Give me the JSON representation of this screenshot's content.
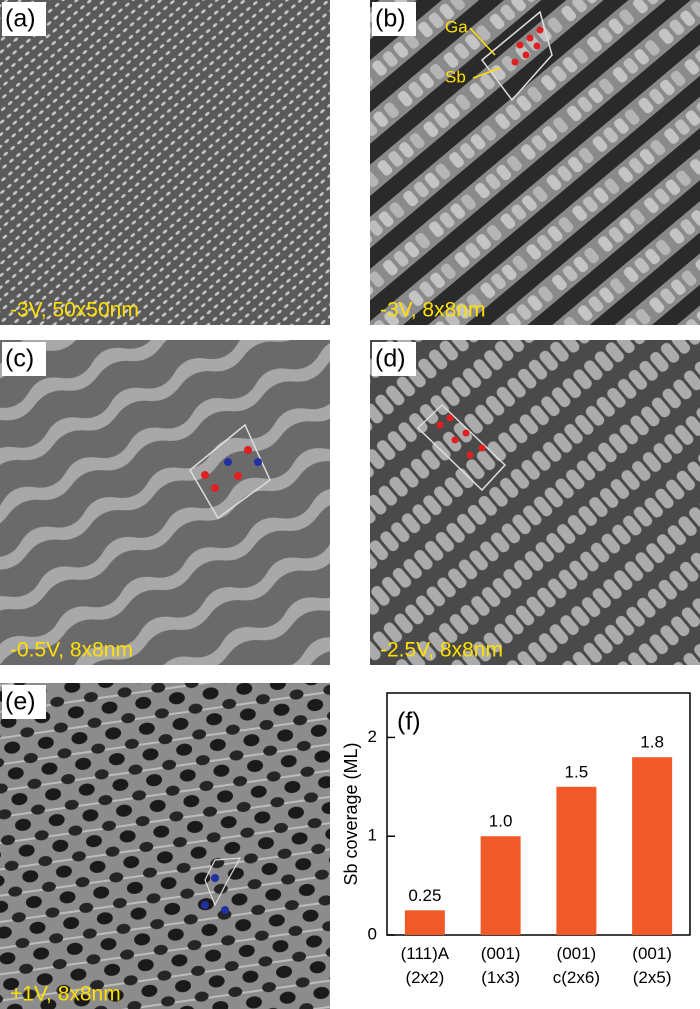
{
  "panels": [
    {
      "label": "(a)",
      "caption": "-3V, 50x50nm"
    },
    {
      "label": "(b)",
      "caption": "-3V, 8x8nm",
      "annotations": [
        "Ga",
        "Sb"
      ]
    },
    {
      "label": "(c)",
      "caption": "-0.5V, 8x8nm"
    },
    {
      "label": "(d)",
      "caption": "-2.5V, 8x8nm"
    },
    {
      "label": "(e)",
      "caption": "+1V, 8x8nm"
    }
  ],
  "chart_data": {
    "type": "bar",
    "label": "(f)",
    "ylabel": "Sb coverage (ML)",
    "categories": [
      "(111)A (2x2)",
      "(001) (1x3)",
      "(001) c(2x6)",
      "(001) (2x5)"
    ],
    "values": [
      0.25,
      1.0,
      1.5,
      1.8
    ],
    "value_labels": [
      "0.25",
      "1.0",
      "1.5",
      "1.8"
    ],
    "color": "#f05a28",
    "ylim": [
      0,
      2.45
    ],
    "yticks": [
      0,
      1,
      2
    ]
  }
}
